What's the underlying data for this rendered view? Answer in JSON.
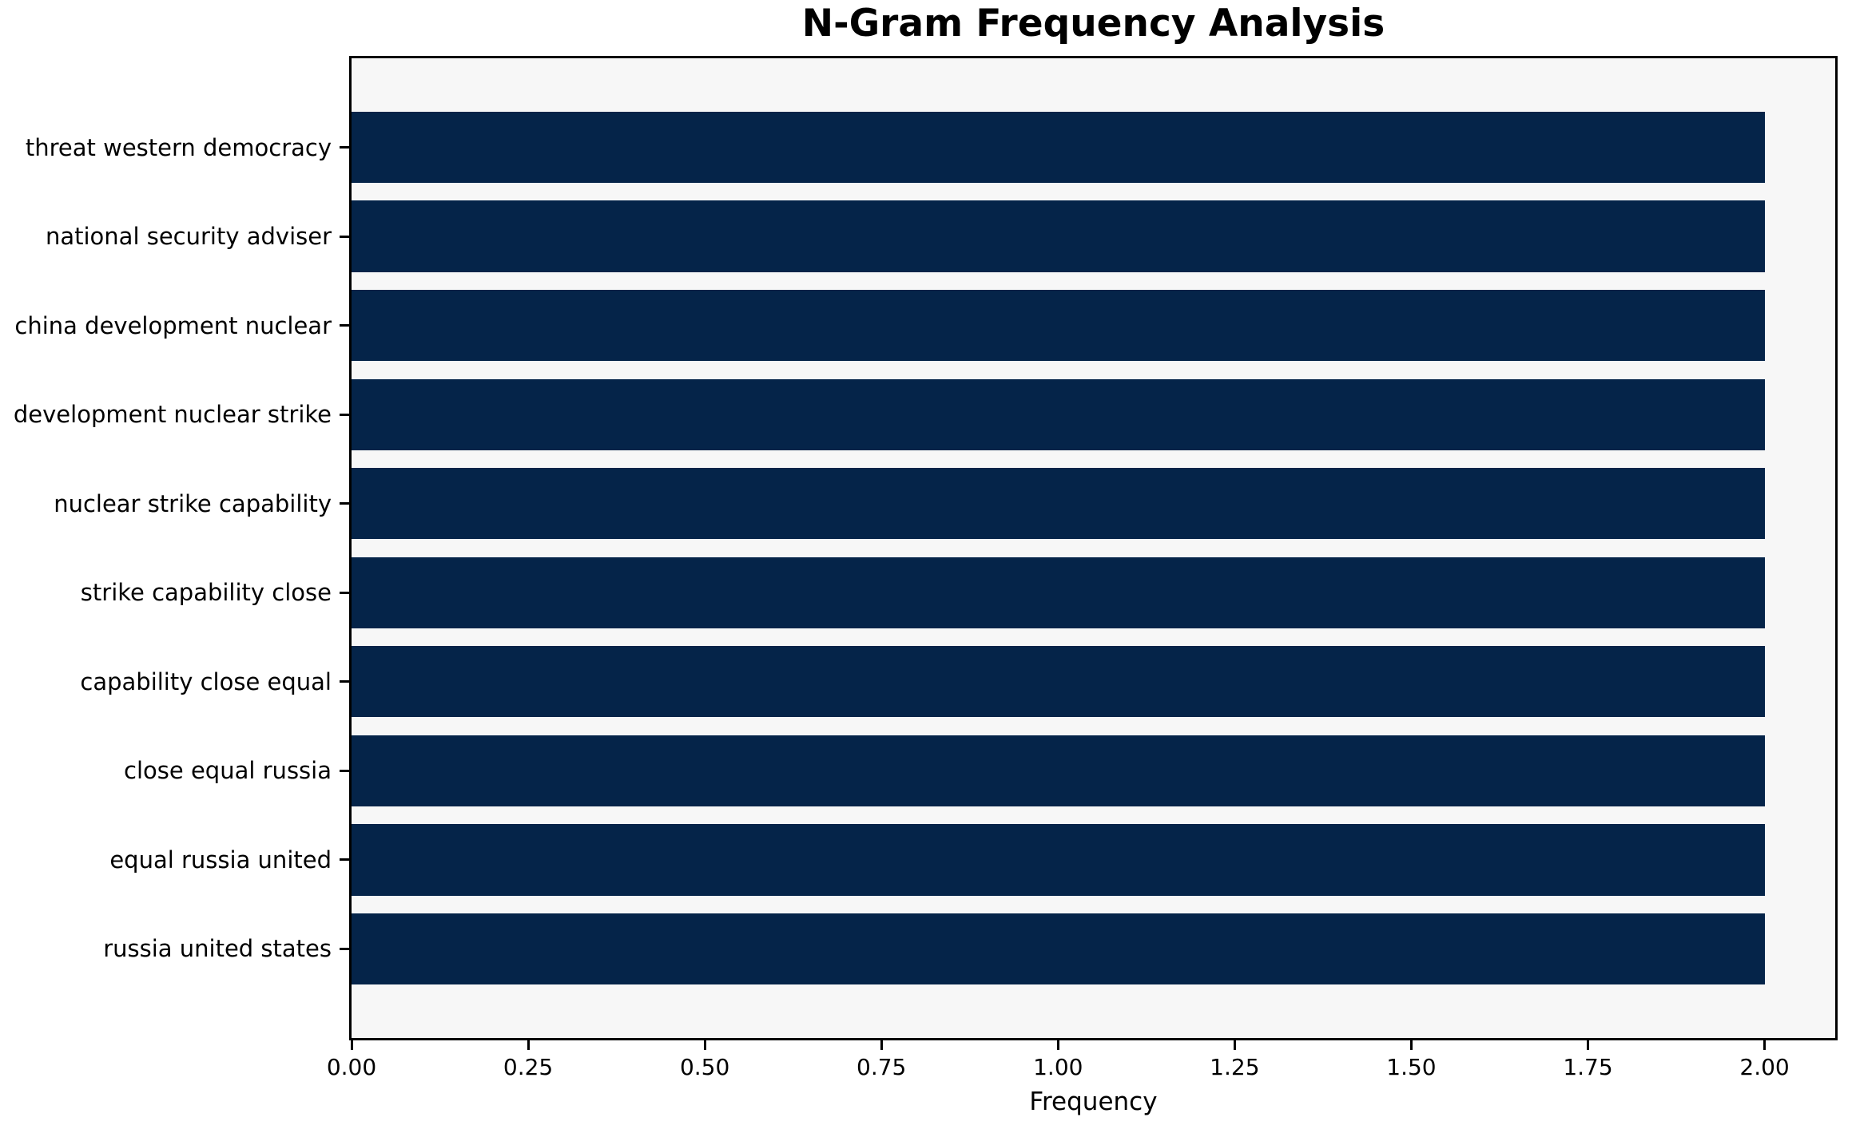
{
  "chart_data": {
    "type": "bar",
    "orientation": "horizontal",
    "title": "N-Gram Frequency Analysis",
    "xlabel": "Frequency",
    "ylabel": "",
    "categories": [
      "threat western democracy",
      "national security adviser",
      "china development nuclear",
      "development nuclear strike",
      "nuclear strike capability",
      "strike capability close",
      "capability close equal",
      "close equal russia",
      "equal russia united",
      "russia united states"
    ],
    "values": [
      2,
      2,
      2,
      2,
      2,
      2,
      2,
      2,
      2,
      2
    ],
    "xlim": [
      0,
      2.1
    ],
    "xticks": [
      0,
      0.25,
      0.5,
      0.75,
      1.0,
      1.25,
      1.5,
      1.75,
      2.0
    ],
    "xtick_labels": [
      "0.00",
      "0.25",
      "0.50",
      "0.75",
      "1.00",
      "1.25",
      "1.50",
      "1.75",
      "2.00"
    ],
    "grid": false,
    "legend": "none",
    "bar_color": "#052449",
    "plot_bg_color": "#f7f7f7",
    "frame_color": "#000000",
    "text_color": "#000000"
  }
}
